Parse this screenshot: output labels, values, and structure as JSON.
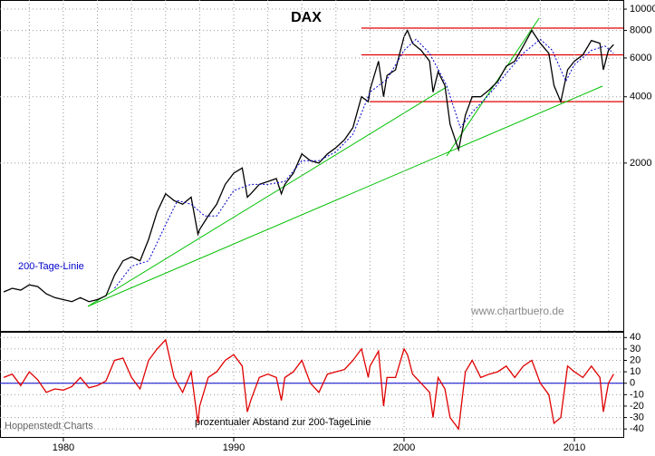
{
  "chart_data": [
    {
      "type": "line",
      "title": "DAX",
      "log_scale": true,
      "grid": true,
      "xlim": [
        1976.28,
        2012.87
      ],
      "ylim": [
        346,
        11000
      ],
      "yticks": [
        2000,
        4000,
        6000,
        8000,
        10000
      ],
      "x_minor_ticks": [
        1978,
        1980,
        1982,
        1984,
        1986,
        1988,
        1990,
        1992,
        1994,
        1996,
        1998,
        2000,
        2002,
        2004,
        2006,
        2008,
        2010,
        2012
      ],
      "series": [
        {
          "color": "#000000",
          "x": [
            1976.5,
            1977,
            1977.5,
            1978,
            1978.5,
            1979,
            1979.5,
            1980,
            1980.5,
            1981,
            1981.5,
            1982,
            1982.5,
            1983,
            1983.5,
            1984,
            1984.5,
            1985,
            1985.5,
            1986,
            1986.5,
            1987,
            1987.5,
            1987.9,
            1988,
            1988.5,
            1989,
            1989.5,
            1990,
            1990.5,
            1990.8,
            1991,
            1991.5,
            1992,
            1992.5,
            1992.8,
            1993,
            1993.5,
            1994,
            1994.5,
            1995,
            1995.5,
            1996,
            1996.5,
            1997,
            1997.5,
            1997.9,
            1998,
            1998.5,
            1998.8,
            1999,
            1999.5,
            2000,
            2000.2,
            2000.5,
            2001,
            2001.5,
            2001.7,
            2002,
            2002.4,
            2002.7,
            2003.2,
            2003.6,
            2004,
            2004.5,
            2005,
            2005.5,
            2006,
            2006.5,
            2007,
            2007.5,
            2008,
            2008.5,
            2008.8,
            2009.2,
            2009.6,
            2010,
            2010.5,
            2011,
            2011.5,
            2011.7,
            2012,
            2012.3
          ],
          "values": [
            520,
            540,
            530,
            560,
            550,
            510,
            490,
            480,
            470,
            490,
            470,
            480,
            500,
            620,
            720,
            750,
            720,
            900,
            1200,
            1450,
            1350,
            1300,
            1400,
            950,
            1000,
            1150,
            1300,
            1600,
            1800,
            1900,
            1400,
            1450,
            1600,
            1650,
            1700,
            1450,
            1600,
            1800,
            2200,
            2050,
            2000,
            2200,
            2350,
            2550,
            2900,
            4000,
            3800,
            4300,
            5800,
            4000,
            5000,
            5300,
            7500,
            8000,
            7000,
            6500,
            5800,
            4200,
            5200,
            4500,
            3000,
            2300,
            3300,
            4000,
            4000,
            4300,
            4700,
            5500,
            5800,
            6800,
            8000,
            7000,
            6300,
            4500,
            3800,
            5300,
            5800,
            6200,
            7200,
            7000,
            5300,
            6500,
            6900
          ]
        },
        {
          "name": "200-Tage-Linie",
          "color": "#0000cc",
          "x": [
            1983,
            1984,
            1985,
            1986,
            1986.7,
            1987.5,
            1988.3,
            1989,
            1990,
            1991,
            1992,
            1993,
            1994,
            1995,
            1996,
            1997,
            1998,
            1999,
            2000,
            2000.7,
            2001.5,
            2002.5,
            2003.3,
            2004,
            2005,
            2006,
            2007,
            2008,
            2008.7,
            2009.5,
            2010,
            2011,
            2011.8,
            2012.3
          ],
          "values": [
            540,
            680,
            720,
            1050,
            1350,
            1300,
            1150,
            1150,
            1500,
            1600,
            1600,
            1650,
            2050,
            2050,
            2250,
            2700,
            4200,
            4800,
            6500,
            7300,
            6300,
            4500,
            2900,
            3400,
            4100,
            5100,
            6300,
            7300,
            6500,
            4700,
            5600,
            6500,
            6800,
            6300
          ]
        }
      ],
      "hlines": [
        {
          "value": 8200,
          "x0": 1997.5,
          "color": "#e00000"
        },
        {
          "value": 6200,
          "x0": 1997.5,
          "color": "#e00000"
        },
        {
          "value": 3800,
          "x0": 1998.0,
          "color": "#e00000"
        }
      ],
      "trendlines": [
        {
          "x": [
            1981.44,
            2002.5
          ],
          "y": [
            447,
            4430
          ],
          "color": "#00c000"
        },
        {
          "x": [
            1981.44,
            2011.65
          ],
          "y": [
            447,
            4470
          ],
          "color": "#00c000"
        },
        {
          "x": [
            2002.5,
            2007.93
          ],
          "y": [
            2154,
            9100
          ],
          "color": "#00c000"
        }
      ],
      "source": "www.chartbuero.de"
    },
    {
      "type": "line",
      "grid": true,
      "xlim": [
        1976.28,
        2012.87
      ],
      "ylim": [
        -47,
        45
      ],
      "yticks": [
        -40,
        -30,
        -20,
        -10,
        0,
        10,
        20,
        30,
        40
      ],
      "xticks": [
        1980,
        1990,
        2000,
        2010
      ],
      "baseline": {
        "value": 0,
        "color": "#0000cc"
      },
      "series": [
        {
          "name": "prozentualer Abstand zur 200-TageLinie",
          "color": "#e00000",
          "x": [
            1976.5,
            1977,
            1977.5,
            1978,
            1978.5,
            1979,
            1979.5,
            1980,
            1980.5,
            1981,
            1981.5,
            1982,
            1982.5,
            1983,
            1983.5,
            1984,
            1984.5,
            1985,
            1985.5,
            1986,
            1986.5,
            1987,
            1987.5,
            1987.9,
            1988,
            1988.5,
            1989,
            1989.5,
            1990,
            1990.5,
            1990.8,
            1991,
            1991.5,
            1992,
            1992.5,
            1992.8,
            1993,
            1993.5,
            1994,
            1994.5,
            1995,
            1995.5,
            1996,
            1996.5,
            1997,
            1997.5,
            1997.9,
            1998,
            1998.5,
            1998.8,
            1999,
            1999.5,
            2000,
            2000.2,
            2000.5,
            2001,
            2001.5,
            2001.7,
            2002,
            2002.4,
            2002.7,
            2003.2,
            2003.6,
            2004,
            2004.5,
            2005,
            2005.5,
            2006,
            2006.5,
            2007,
            2007.5,
            2008,
            2008.5,
            2008.8,
            2009.2,
            2009.6,
            2010,
            2010.5,
            2011,
            2011.5,
            2011.7,
            2012,
            2012.3
          ],
          "values": [
            5,
            8,
            -2,
            10,
            3,
            -8,
            -5,
            -6,
            -3,
            5,
            -4,
            -2,
            2,
            20,
            22,
            5,
            -5,
            20,
            30,
            38,
            5,
            -8,
            10,
            -35,
            -20,
            5,
            10,
            20,
            25,
            15,
            -25,
            -15,
            5,
            8,
            5,
            -15,
            5,
            10,
            20,
            0,
            -8,
            8,
            10,
            12,
            20,
            30,
            5,
            15,
            28,
            -20,
            5,
            5,
            30,
            25,
            8,
            0,
            -8,
            -30,
            5,
            -5,
            -30,
            -40,
            10,
            20,
            5,
            8,
            10,
            15,
            5,
            15,
            20,
            0,
            -10,
            -35,
            -30,
            15,
            10,
            5,
            15,
            5,
            -25,
            0,
            8
          ]
        }
      ],
      "credit": "Hoppenstedt Charts"
    }
  ]
}
